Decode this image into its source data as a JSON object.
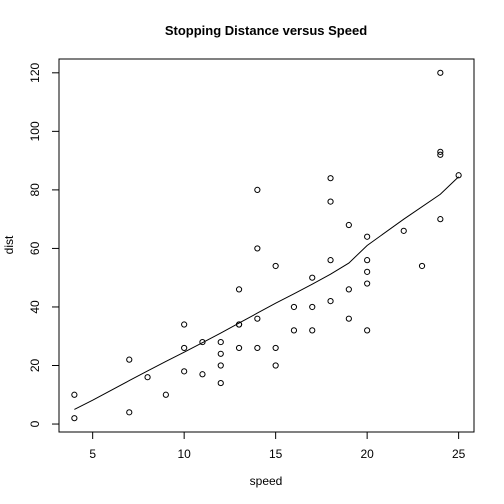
{
  "chart_data": {
    "type": "scatter",
    "title": "Stopping Distance versus Speed",
    "xlabel": "speed",
    "ylabel": "dist",
    "xlim": [
      3.16,
      25.84
    ],
    "ylim": [
      -2.72,
      124.72
    ],
    "x_ticks": [
      5,
      10,
      15,
      20,
      25
    ],
    "y_ticks": [
      0,
      20,
      40,
      60,
      80,
      100,
      120
    ],
    "grid": false,
    "series": [
      {
        "type": "scatter",
        "marker": "open-circle",
        "points": [
          [
            4,
            2
          ],
          [
            4,
            10
          ],
          [
            7,
            4
          ],
          [
            7,
            22
          ],
          [
            8,
            16
          ],
          [
            9,
            10
          ],
          [
            10,
            18
          ],
          [
            10,
            26
          ],
          [
            10,
            34
          ],
          [
            11,
            17
          ],
          [
            11,
            28
          ],
          [
            12,
            14
          ],
          [
            12,
            20
          ],
          [
            12,
            24
          ],
          [
            12,
            28
          ],
          [
            13,
            26
          ],
          [
            13,
            34
          ],
          [
            13,
            34
          ],
          [
            13,
            46
          ],
          [
            14,
            26
          ],
          [
            14,
            36
          ],
          [
            14,
            60
          ],
          [
            14,
            80
          ],
          [
            15,
            20
          ],
          [
            15,
            26
          ],
          [
            15,
            54
          ],
          [
            16,
            32
          ],
          [
            16,
            40
          ],
          [
            17,
            32
          ],
          [
            17,
            40
          ],
          [
            17,
            50
          ],
          [
            18,
            42
          ],
          [
            18,
            56
          ],
          [
            18,
            76
          ],
          [
            18,
            84
          ],
          [
            19,
            36
          ],
          [
            19,
            46
          ],
          [
            19,
            68
          ],
          [
            20,
            32
          ],
          [
            20,
            48
          ],
          [
            20,
            52
          ],
          [
            20,
            56
          ],
          [
            20,
            64
          ],
          [
            22,
            66
          ],
          [
            23,
            54
          ],
          [
            24,
            70
          ],
          [
            24,
            92
          ],
          [
            24,
            93
          ],
          [
            24,
            120
          ],
          [
            25,
            85
          ]
        ]
      },
      {
        "type": "line",
        "points": [
          [
            4,
            4.97
          ],
          [
            5,
            8.13
          ],
          [
            7,
            14.84
          ],
          [
            8,
            18.14
          ],
          [
            9,
            21.37
          ],
          [
            10,
            24.55
          ],
          [
            11,
            27.8
          ],
          [
            12,
            31.1
          ],
          [
            13,
            34.5
          ],
          [
            14,
            37.9
          ],
          [
            15,
            41.3
          ],
          [
            16,
            44.5
          ],
          [
            17,
            47.8
          ],
          [
            18,
            51.2
          ],
          [
            19,
            55.0
          ],
          [
            20,
            61.0
          ],
          [
            22,
            70.0
          ],
          [
            24,
            78.5
          ],
          [
            25,
            84.5
          ]
        ]
      }
    ]
  }
}
